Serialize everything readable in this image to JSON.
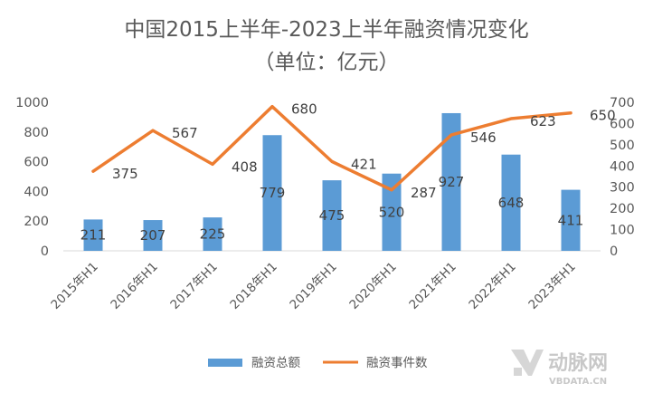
{
  "chart_data": {
    "type": "bar",
    "title": "中国2015上半年-2023上半年融资情况变化",
    "subtitle": "（单位：亿元）",
    "categories": [
      "2015年H1",
      "2016年H1",
      "2017年H1",
      "2018年H1",
      "2019年H1",
      "2020年H1",
      "2021年H1",
      "2022年H1",
      "2023年H1"
    ],
    "series": [
      {
        "name": "融资总额",
        "type": "bar",
        "axis": "left",
        "color": "#5b9bd5",
        "values": [
          211,
          207,
          225,
          779,
          475,
          520,
          927,
          648,
          411
        ],
        "labels": [
          "211",
          "207",
          "225",
          "779",
          "475",
          "520",
          "927",
          "648",
          "411"
        ]
      },
      {
        "name": "融资事件数",
        "type": "line",
        "axis": "right",
        "color": "#ed7d31",
        "values": [
          375,
          567,
          408,
          680,
          421,
          287,
          546,
          623,
          650
        ],
        "labels": [
          "375",
          "567",
          "408",
          "680",
          "421",
          "287",
          "546",
          "623",
          "650"
        ]
      }
    ],
    "y_left": {
      "min": 0,
      "max": 1000,
      "step": 200,
      "ticks": [
        "0",
        "200",
        "400",
        "600",
        "800",
        "1000"
      ]
    },
    "y_right": {
      "min": 0,
      "max": 700,
      "step": 100,
      "ticks": [
        "0",
        "100",
        "200",
        "300",
        "400",
        "500",
        "600",
        "700"
      ]
    },
    "grid": false,
    "legend": "bottom"
  },
  "watermark": {
    "text": "动脉网",
    "subtext": "VBDATA.CN",
    "icon": "vb-logo-icon"
  }
}
